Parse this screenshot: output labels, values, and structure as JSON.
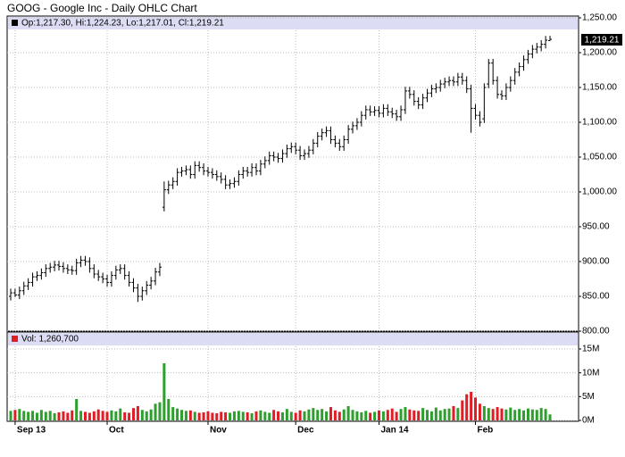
{
  "chart_data": {
    "type": "ohlc",
    "title": "GOOG - Google Inc - Daily OHLC Chart",
    "legend_text": "Op:1,217.30, Hi:1,224.23, Lo:1,217.01, Cl:1,219.21",
    "volume_text": "Vol: 1,260,700",
    "close_label": "1,219.21",
    "bar_color": "#000000",
    "up_color": "#2e9e2e",
    "down_color": "#e01c24",
    "grid": true,
    "categories": [
      null,
      "Sep 13",
      null,
      null,
      null,
      null,
      null,
      null,
      null,
      null,
      null,
      null,
      null,
      null,
      null,
      null,
      null,
      null,
      null,
      null,
      null,
      null,
      "Oct",
      null,
      null,
      null,
      null,
      null,
      null,
      null,
      null,
      null,
      null,
      null,
      null,
      null,
      null,
      null,
      null,
      null,
      null,
      null,
      null,
      null,
      null,
      "Nov",
      null,
      null,
      null,
      null,
      null,
      null,
      null,
      null,
      null,
      null,
      null,
      null,
      null,
      null,
      null,
      null,
      null,
      null,
      null,
      "Dec",
      null,
      null,
      null,
      null,
      null,
      null,
      null,
      null,
      null,
      null,
      null,
      null,
      null,
      null,
      null,
      null,
      null,
      null,
      "Jan 14",
      null,
      null,
      null,
      null,
      null,
      null,
      null,
      null,
      null,
      null,
      null,
      null,
      null,
      null,
      null,
      null,
      null,
      null,
      null,
      null,
      null,
      "Feb",
      null,
      null,
      null,
      null,
      null,
      null,
      null,
      null,
      null,
      null,
      null,
      null,
      null,
      null,
      null,
      null,
      null
    ],
    "open": [
      850,
      855,
      852,
      858,
      865,
      870,
      878,
      880,
      884,
      890,
      892,
      895,
      893,
      890,
      888,
      887,
      898,
      902,
      900,
      890,
      882,
      878,
      875,
      870,
      880,
      888,
      890,
      880,
      870,
      862,
      850,
      858,
      866,
      872,
      885,
      978,
      1003,
      1010,
      1015,
      1028,
      1030,
      1032,
      1025,
      1038,
      1035,
      1030,
      1028,
      1025,
      1022,
      1018,
      1010,
      1012,
      1015,
      1025,
      1030,
      1028,
      1035,
      1030,
      1040,
      1045,
      1052,
      1050,
      1048,
      1055,
      1062,
      1065,
      1060,
      1052,
      1055,
      1060,
      1070,
      1080,
      1085,
      1088,
      1075,
      1070,
      1065,
      1075,
      1090,
      1095,
      1100,
      1110,
      1118,
      1115,
      1117,
      1113,
      1120,
      1115,
      1112,
      1108,
      1118,
      1145,
      1140,
      1130,
      1125,
      1135,
      1142,
      1148,
      1150,
      1155,
      1158,
      1160,
      1158,
      1165,
      1160,
      1148,
      1120,
      1110,
      1105,
      1155,
      1185,
      1160,
      1140,
      1138,
      1150,
      1160,
      1172,
      1180,
      1190,
      1198,
      1205,
      1208,
      1212,
      1217.3
    ],
    "high": [
      861,
      861,
      864,
      871,
      876,
      884,
      886,
      890,
      896,
      898,
      901,
      901,
      899,
      896,
      894,
      904,
      908,
      908,
      906,
      896,
      888,
      884,
      881,
      886,
      894,
      896,
      896,
      886,
      876,
      868,
      864,
      872,
      878,
      891,
      898,
      1015,
      1016,
      1021,
      1034,
      1036,
      1038,
      1038,
      1044,
      1044,
      1041,
      1036,
      1034,
      1031,
      1028,
      1024,
      1018,
      1021,
      1031,
      1036,
      1036,
      1041,
      1041,
      1046,
      1051,
      1058,
      1058,
      1056,
      1061,
      1068,
      1071,
      1071,
      1066,
      1061,
      1066,
      1076,
      1086,
      1091,
      1094,
      1094,
      1081,
      1076,
      1081,
      1096,
      1101,
      1106,
      1116,
      1124,
      1124,
      1123,
      1123,
      1126,
      1126,
      1121,
      1118,
      1124,
      1151,
      1151,
      1146,
      1136,
      1141,
      1148,
      1154,
      1156,
      1161,
      1164,
      1166,
      1166,
      1171,
      1171,
      1166,
      1154,
      1126,
      1116,
      1156,
      1191,
      1191,
      1166,
      1146,
      1156,
      1166,
      1178,
      1186,
      1196,
      1204,
      1211,
      1214,
      1218,
      1224,
      1224.23
    ],
    "low": [
      844,
      849,
      846,
      852,
      859,
      864,
      872,
      874,
      878,
      884,
      886,
      887,
      884,
      882,
      881,
      881,
      892,
      894,
      884,
      876,
      872,
      869,
      864,
      864,
      874,
      882,
      874,
      864,
      856,
      842,
      844,
      852,
      860,
      866,
      879,
      972,
      997,
      1004,
      1009,
      1022,
      1024,
      1019,
      1019,
      1029,
      1024,
      1022,
      1019,
      1016,
      1012,
      1004,
      1004,
      1006,
      1009,
      1019,
      1022,
      1022,
      1024,
      1024,
      1034,
      1039,
      1044,
      1042,
      1042,
      1049,
      1056,
      1054,
      1046,
      1046,
      1049,
      1054,
      1064,
      1074,
      1079,
      1069,
      1064,
      1059,
      1059,
      1069,
      1084,
      1089,
      1094,
      1104,
      1109,
      1109,
      1107,
      1107,
      1109,
      1106,
      1102,
      1102,
      1112,
      1134,
      1124,
      1119,
      1119,
      1129,
      1136,
      1142,
      1144,
      1149,
      1152,
      1152,
      1152,
      1154,
      1142,
      1085,
      1104,
      1094,
      1099,
      1149,
      1154,
      1134,
      1132,
      1132,
      1144,
      1154,
      1166,
      1174,
      1184,
      1192,
      1199,
      1202,
      1206,
      1217.01
    ],
    "close": [
      855,
      852,
      858,
      865,
      870,
      878,
      880,
      884,
      890,
      892,
      895,
      893,
      890,
      888,
      887,
      898,
      902,
      900,
      890,
      882,
      878,
      875,
      870,
      880,
      888,
      890,
      880,
      870,
      862,
      850,
      858,
      866,
      872,
      885,
      892,
      1003,
      1010,
      1015,
      1028,
      1030,
      1032,
      1025,
      1038,
      1035,
      1030,
      1028,
      1025,
      1022,
      1018,
      1010,
      1012,
      1015,
      1025,
      1030,
      1028,
      1035,
      1030,
      1040,
      1045,
      1052,
      1050,
      1048,
      1055,
      1062,
      1065,
      1060,
      1052,
      1055,
      1060,
      1070,
      1080,
      1085,
      1088,
      1075,
      1070,
      1065,
      1075,
      1090,
      1095,
      1100,
      1110,
      1118,
      1115,
      1117,
      1113,
      1120,
      1115,
      1112,
      1108,
      1118,
      1145,
      1140,
      1130,
      1125,
      1135,
      1142,
      1148,
      1150,
      1155,
      1158,
      1160,
      1158,
      1165,
      1160,
      1148,
      1120,
      1110,
      1100,
      1150,
      1185,
      1160,
      1140,
      1138,
      1150,
      1160,
      1172,
      1180,
      1190,
      1198,
      1205,
      1208,
      1212,
      1218,
      1219.21
    ],
    "volume": [
      2,
      2.2,
      2.4,
      2,
      1.8,
      2,
      1.6,
      2.2,
      1.8,
      2,
      1.5,
      1.7,
      1.9,
      1.6,
      2.1,
      4.5,
      2,
      1.8,
      1.6,
      1.9,
      2.3,
      2,
      1.8,
      2.1,
      1.9,
      2.5,
      1.7,
      1.6,
      2.6,
      3,
      2.2,
      1.9,
      2.3,
      3.5,
      3.8,
      12,
      4.5,
      2.8,
      2.5,
      2.2,
      2,
      2.1,
      1.8,
      1.6,
      1.7,
      1.9,
      1.6,
      1.5,
      1.8,
      1.7,
      1.6,
      1.9,
      2,
      1.8,
      1.7,
      1.5,
      1.9,
      2.1,
      1.8,
      1.6,
      2.2,
      1.9,
      1.7,
      2.4,
      1.8,
      1.6,
      2.1,
      1.9,
      2.3,
      2.6,
      2.2,
      2.4,
      1.9,
      2.8,
      2.1,
      1.8,
      2.3,
      3,
      2.2,
      1.9,
      1.7,
      2,
      1.6,
      1.8,
      2.1,
      1.9,
      2.2,
      2.5,
      1.8,
      2.4,
      2.8,
      2.3,
      2.1,
      2,
      2.6,
      2.2,
      1.9,
      2.7,
      2.1,
      2.4,
      2.5,
      3,
      2.6,
      4.2,
      5.5,
      6,
      4.8,
      3.5,
      3,
      2.6,
      2.4,
      2.8,
      2.5,
      2.3,
      2.7,
      2.2,
      2.4,
      2.1,
      2.5,
      2.3,
      2.2,
      2.6,
      2.4,
      1.2607
    ],
    "ylim": [
      800,
      1250
    ],
    "yticks": [
      {
        "value": 800,
        "label": "800.00"
      },
      {
        "value": 850,
        "label": "850.00"
      },
      {
        "value": 900,
        "label": "900.00"
      },
      {
        "value": 950,
        "label": "950.00"
      },
      {
        "value": 1000,
        "label": "1,000.00"
      },
      {
        "value": 1050,
        "label": "1,050.00"
      },
      {
        "value": 1100,
        "label": "1,100.00"
      },
      {
        "value": 1150,
        "label": "1,150.00"
      },
      {
        "value": 1200,
        "label": "1,200.00"
      },
      {
        "value": 1250,
        "label": "1,250.00"
      }
    ],
    "y2lim": [
      0,
      15
    ],
    "y2ticks": [
      {
        "value": 0,
        "label": "0M"
      },
      {
        "value": 5,
        "label": "5M"
      },
      {
        "value": 10,
        "label": "10M"
      },
      {
        "value": 15,
        "label": "15M"
      }
    ]
  }
}
